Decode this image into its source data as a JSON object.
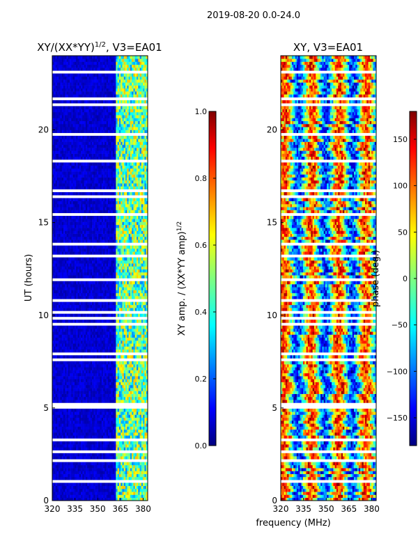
{
  "figure": {
    "suptitle": "2019-08-20 0.0-24.0",
    "xlabel": "frequency (MHz)"
  },
  "chart_data": [
    {
      "type": "heatmap",
      "title_main": "XY/(XX*YY)",
      "title_sup": "1/2",
      "title_rest": ", V3=EA01",
      "ylabel": "UT (hours)",
      "xlim": [
        320,
        383
      ],
      "ylim": [
        0,
        24
      ],
      "xticks": [
        320,
        335,
        350,
        365,
        380
      ],
      "yticks": [
        0,
        5,
        10,
        15,
        20
      ],
      "colorbar": {
        "label_main": "XY amp. / (XX*YY amp)",
        "label_sup": "1/2",
        "range": [
          0.0,
          1.0
        ],
        "ticks": [
          0.0,
          0.2,
          0.4,
          0.6,
          0.8,
          1.0
        ],
        "tick_labels": [
          "0.0",
          "0.2",
          "0.4",
          "0.6",
          "0.8",
          "1.0"
        ]
      }
    },
    {
      "type": "heatmap",
      "title": "XY, V3=EA01",
      "xlim": [
        320,
        383
      ],
      "ylim": [
        0,
        24
      ],
      "xticks": [
        320,
        335,
        350,
        365,
        380
      ],
      "yticks": [
        0,
        5,
        10,
        15,
        20
      ],
      "colorbar": {
        "label": "phase (deg.)",
        "range": [
          -180,
          180
        ],
        "ticks": [
          -150,
          -100,
          -50,
          0,
          50,
          100,
          150
        ],
        "tick_labels": [
          "−150",
          "−100",
          "−50",
          "0",
          "50",
          "100",
          "150"
        ]
      }
    }
  ],
  "colors": {
    "jet": [
      "#00007f",
      "#0000ff",
      "#007fff",
      "#00ffff",
      "#7fff7f",
      "#ffff00",
      "#ff7f00",
      "#ff0000",
      "#7f0000"
    ]
  }
}
